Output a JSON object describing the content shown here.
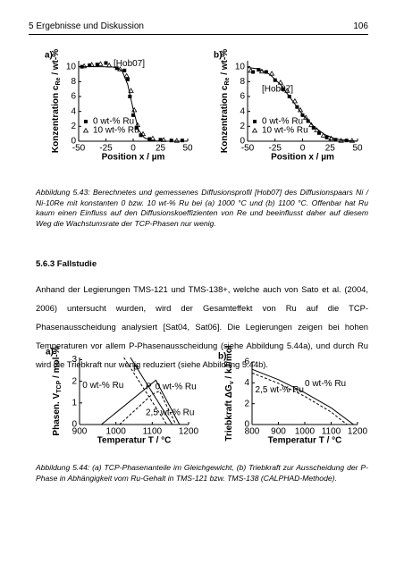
{
  "header": {
    "left": "5 Ergebnisse und Diskussion",
    "right": "106"
  },
  "chart_data": [
    {
      "type": "scatter",
      "panel": "a)",
      "x_label": "Position x / µm",
      "y_label": {
        "text": "Konzentration c",
        "sub": "Re",
        "unit": " / wt-%"
      },
      "xlim": [
        -50,
        50
      ],
      "ylim": [
        0,
        10.8
      ],
      "xticks": [
        -50,
        -25,
        0,
        25,
        50
      ],
      "yticks": [
        0,
        2,
        4,
        6,
        8,
        10
      ],
      "legend": "lower left",
      "annotations": [
        "[Hob07]"
      ],
      "series": [
        {
          "name": "0 wt-% Ru",
          "marker": "square",
          "color": "#000000",
          "x": [
            -47,
            -40,
            -33,
            -25,
            -15,
            -8,
            -5,
            -3,
            0,
            3,
            7,
            15,
            25,
            35,
            45
          ],
          "values": [
            10,
            10.2,
            10.3,
            10.5,
            9.8,
            9.5,
            8.3,
            6,
            3.5,
            1.8,
            0.8,
            0.3,
            0.2,
            0.1,
            0.1
          ]
        },
        {
          "name": "10 wt-% Ru",
          "marker": "triangle",
          "color": "#000000",
          "x": [
            -45,
            -38,
            -30,
            -22,
            -12,
            -6,
            -2,
            1,
            4,
            9,
            18,
            28,
            40
          ],
          "values": [
            10.1,
            10.3,
            10.4,
            10.2,
            9.7,
            8.8,
            6.8,
            4.2,
            2.2,
            1,
            0.4,
            0.2,
            0.1
          ]
        },
        {
          "marker": "line",
          "dash": "solid",
          "color": "#000000",
          "x": [
            -50,
            -40,
            -30,
            -20,
            -15,
            -10,
            -5,
            0,
            5,
            10,
            15,
            20,
            30,
            40,
            50
          ],
          "values": [
            10,
            10,
            10,
            9.98,
            9.9,
            9.4,
            7.6,
            4.3,
            1.5,
            0.5,
            0.15,
            0.05,
            0,
            0,
            0
          ]
        }
      ]
    },
    {
      "type": "scatter",
      "panel": "b)",
      "x_label": "Position x / µm",
      "y_label": {
        "text": "Konzentration c",
        "sub": "Re",
        "unit": " / wt-%"
      },
      "xlim": [
        -50,
        50
      ],
      "ylim": [
        0,
        10.8
      ],
      "xticks": [
        -50,
        -25,
        0,
        25,
        50
      ],
      "yticks": [
        0,
        2,
        4,
        6,
        8,
        10
      ],
      "legend": "lower left",
      "annotations": [
        "[Hob07]"
      ],
      "series": [
        {
          "name": "0 wt-% Ru",
          "marker": "square",
          "color": "#000000",
          "x": [
            -45,
            -40,
            -33,
            -25,
            -18,
            -12,
            -5,
            0,
            5,
            10,
            15,
            22,
            30,
            40
          ],
          "values": [
            9.3,
            9.6,
            9.3,
            8.2,
            7,
            6,
            4.6,
            3.5,
            2.7,
            1.8,
            1.1,
            0.5,
            0.2,
            0.1
          ]
        },
        {
          "name": "10 wt-% Ru",
          "marker": "triangle",
          "color": "#000000",
          "x": [
            -47,
            -37,
            -28,
            -20,
            -14,
            -7,
            -2,
            3,
            8,
            13,
            19,
            26,
            35,
            45
          ],
          "values": [
            9.5,
            9.4,
            9.1,
            7.9,
            6.8,
            5.4,
            4.2,
            3.2,
            2.2,
            1.5,
            0.8,
            0.4,
            0.1,
            0.1
          ]
        },
        {
          "marker": "line",
          "dash": "solid",
          "color": "#000000",
          "x": [
            -50,
            -40,
            -30,
            -20,
            -10,
            0,
            10,
            20,
            30,
            40,
            50
          ],
          "values": [
            9.9,
            9.7,
            9,
            7.6,
            5.6,
            3.6,
            2,
            0.9,
            0.3,
            0.1,
            0
          ]
        }
      ]
    },
    {
      "type": "line",
      "panel": "a)",
      "x_label": "Temperatur T / °C",
      "y_label": {
        "text": "Phasen. V",
        "sub": "TCP",
        "unit": " / mol-%"
      },
      "xlim": [
        900,
        1200
      ],
      "ylim": [
        0,
        3.1
      ],
      "xticks": [
        900,
        1000,
        1100,
        1200
      ],
      "yticks": [
        0,
        1,
        2,
        3
      ],
      "annotations": [
        "μ",
        "0 wt-% Ru",
        "P",
        "0 wt-% Ru",
        "2,5 wt-% Ru"
      ],
      "series": [
        {
          "marker": "line",
          "dash": "solid",
          "color": "#000000",
          "x": [
            1040,
            1155
          ],
          "values": [
            3.1,
            0
          ]
        },
        {
          "marker": "line",
          "dash": "dashed",
          "color": "#000000",
          "x": [
            1022,
            1140
          ],
          "values": [
            3.1,
            0
          ]
        },
        {
          "marker": "line",
          "dash": "solid",
          "color": "#000000",
          "x": [
            960,
            1110,
            1175
          ],
          "values": [
            0,
            2.05,
            0
          ]
        },
        {
          "marker": "line",
          "dash": "dashed",
          "color": "#000000",
          "x": [
            1010,
            1100,
            1120,
            1165
          ],
          "values": [
            0,
            1.4,
            1.55,
            0
          ]
        }
      ]
    },
    {
      "type": "line",
      "panel": "b)",
      "x_label": "Temperatur T / °C",
      "y_label": {
        "text": "Triebkraft ΔG",
        "sub": "v",
        "unit": " / kJ/mol"
      },
      "xlim": [
        800,
        1200
      ],
      "ylim": [
        0,
        6
      ],
      "xticks": [
        800,
        900,
        1000,
        1100,
        1200
      ],
      "yticks": [
        0,
        2,
        4,
        6
      ],
      "annotations": [
        "2,5 wt-% Ru",
        "0 wt-% Ru"
      ],
      "series": [
        {
          "marker": "line",
          "dash": "solid",
          "color": "#000000",
          "x": [
            800,
            900,
            1000,
            1100,
            1185
          ],
          "values": [
            5.3,
            4.3,
            3.05,
            1.6,
            0
          ]
        },
        {
          "marker": "line",
          "dash": "dashed",
          "color": "#000000",
          "x": [
            800,
            900,
            1000,
            1100,
            1160
          ],
          "values": [
            4.95,
            3.95,
            2.7,
            1.2,
            0
          ]
        }
      ]
    }
  ],
  "caption_543": "Abbildung 5.43: Berechnetes und gemessenes Diffusionsprofil [Hob07] des Diffusionspaars Ni / Ni-10Re mit konstanten 0 bzw. 10 wt-% Ru bei (a) 1000 °C und (b) 1100 °C. Offenbar hat Ru kaum einen Einfluss auf den Diffusionskoeffizienten von Re und beeinflusst daher auf diesem Weg die Wachstumsrate der TCP-Phasen nur wenig.",
  "section": {
    "heading": "5.6.3 Fallstudie",
    "paragraph": "Anhand der Legierungen TMS-121 und TMS-138+, welche auch von Sato et al. (2004, 2006) untersucht wurden, wird der Gesamteffekt von Ru auf die TCP-Phasenausscheidung analysiert [Sat04, Sat06]. Die Legierungen zeigen bei hohen Temperaturen vor allem P-Phasenausscheidung (siehe Abbildung 5.44a), und durch Ru wird die Triebkraft nur wenig reduziert (siehe Abbildung 5.44b)."
  },
  "caption_544": "Abbildung 5.44: (a) TCP-Phasenanteile im Gleichgewicht, (b) Triebkraft zur Ausscheidung der P-Phase in Abhängigkeit vom Ru-Gehalt in TMS-121 bzw. TMS-138 (CALPHAD-Methode)."
}
